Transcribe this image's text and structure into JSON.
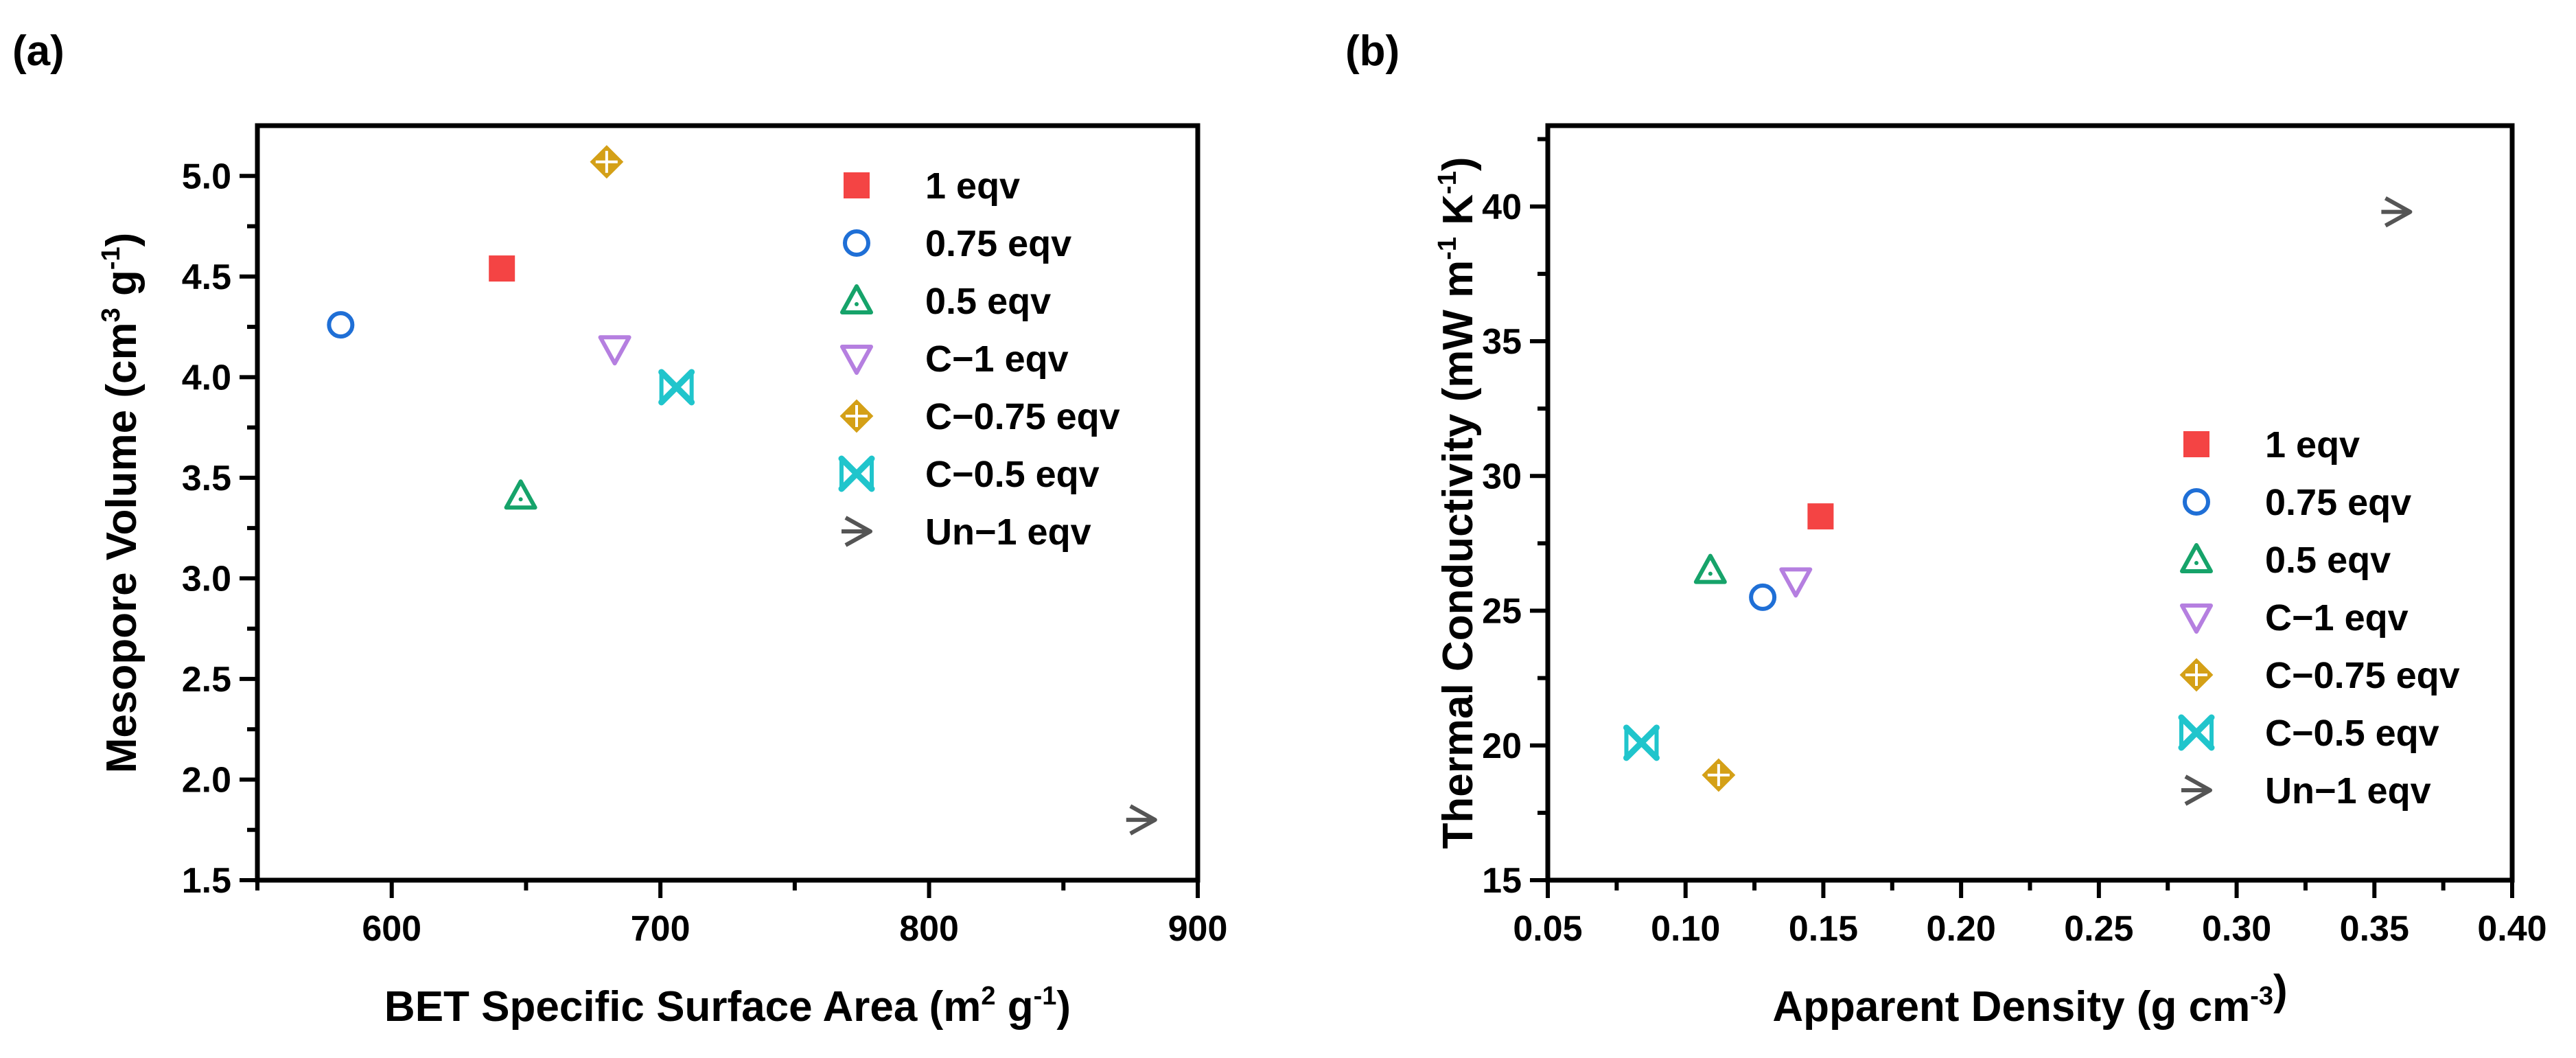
{
  "figure_labels": [
    "(a)",
    "(b)"
  ],
  "legend_entries": [
    "1 eqv",
    "0.75 eqv",
    "0.5 eqv",
    "C−1 eqv",
    "C−0.75 eqv",
    "C−0.5 eqv",
    "Un−1 eqv"
  ],
  "series_colors": {
    "1 eqv": "#f44444",
    "0.75 eqv": "#1f6fd6",
    "0.5 eqv": "#16a36a",
    "C−1 eqv": "#b57fe0",
    "C−0.75 eqv": "#d4a017",
    "C−0.5 eqv": "#20c5cc",
    "Un−1 eqv": "#555555"
  },
  "chart_data": [
    {
      "type": "scatter",
      "label": "(a)",
      "xlabel": {
        "main": "BET Specific Surface Area (m",
        "sup1": "2",
        "mid": " g",
        "sup2": "-1",
        "end": ")"
      },
      "ylabel": {
        "main": "Mesopore Volume (cm",
        "sup1": "3",
        "mid": " g",
        "sup2": "-1",
        "end": ")"
      },
      "xlim": [
        550,
        900
      ],
      "ylim": [
        1.5,
        5.25
      ],
      "xticks": [
        600,
        700,
        800,
        900
      ],
      "xtick_labels": [
        "600",
        "700",
        "800",
        "900"
      ],
      "yticks": [
        1.5,
        2.0,
        2.5,
        3.0,
        3.5,
        4.0,
        4.5,
        5.0
      ],
      "ytick_labels": [
        "1.5",
        "2.0",
        "2.5",
        "3.0",
        "3.5",
        "4.0",
        "4.5",
        "5.0"
      ],
      "legend_position": "top-right",
      "series": [
        {
          "name": "1 eqv",
          "x": [
            641
          ],
          "y": [
            4.54
          ]
        },
        {
          "name": "0.75 eqv",
          "x": [
            581
          ],
          "y": [
            4.26
          ]
        },
        {
          "name": "0.5 eqv",
          "x": [
            648
          ],
          "y": [
            3.41
          ]
        },
        {
          "name": "C−1 eqv",
          "x": [
            683
          ],
          "y": [
            4.14
          ]
        },
        {
          "name": "C−0.75 eqv",
          "x": [
            680
          ],
          "y": [
            5.07
          ]
        },
        {
          "name": "C−0.5 eqv",
          "x": [
            706
          ],
          "y": [
            3.95
          ]
        },
        {
          "name": "Un−1 eqv",
          "x": [
            879
          ],
          "y": [
            1.8
          ]
        }
      ]
    },
    {
      "type": "scatter",
      "label": "(b)",
      "xlabel": {
        "main": "Apparent Density (g cm",
        "sup1": "-3",
        "mid": "",
        "sup2": "",
        "end": ")"
      },
      "ylabel": {
        "main": "Thermal Conductivity (mW m",
        "sup1": "-1",
        "mid": " K",
        "sup2": "-1",
        "end": ")"
      },
      "xlim": [
        0.05,
        0.4
      ],
      "ylim": [
        15,
        43
      ],
      "xticks": [
        0.05,
        0.1,
        0.15,
        0.2,
        0.25,
        0.3,
        0.35,
        0.4
      ],
      "xtick_labels": [
        "0.05",
        "0.10",
        "0.15",
        "0.20",
        "0.25",
        "0.30",
        "0.35",
        "0.40"
      ],
      "yticks": [
        15,
        20,
        25,
        30,
        35,
        40
      ],
      "ytick_labels": [
        "15",
        "20",
        "25",
        "30",
        "35",
        "40"
      ],
      "legend_position": "center-right",
      "series": [
        {
          "name": "1 eqv",
          "x": [
            0.149
          ],
          "y": [
            28.5
          ]
        },
        {
          "name": "0.75 eqv",
          "x": [
            0.128
          ],
          "y": [
            25.5
          ]
        },
        {
          "name": "0.5 eqv",
          "x": [
            0.109
          ],
          "y": [
            26.5
          ]
        },
        {
          "name": "C−1 eqv",
          "x": [
            0.14
          ],
          "y": [
            26.1
          ]
        },
        {
          "name": "C−0.75 eqv",
          "x": [
            0.112
          ],
          "y": [
            18.9
          ]
        },
        {
          "name": "C−0.5 eqv",
          "x": [
            0.084
          ],
          "y": [
            20.1
          ]
        },
        {
          "name": "Un−1 eqv",
          "x": [
            0.358
          ],
          "y": [
            39.8
          ]
        }
      ]
    }
  ]
}
